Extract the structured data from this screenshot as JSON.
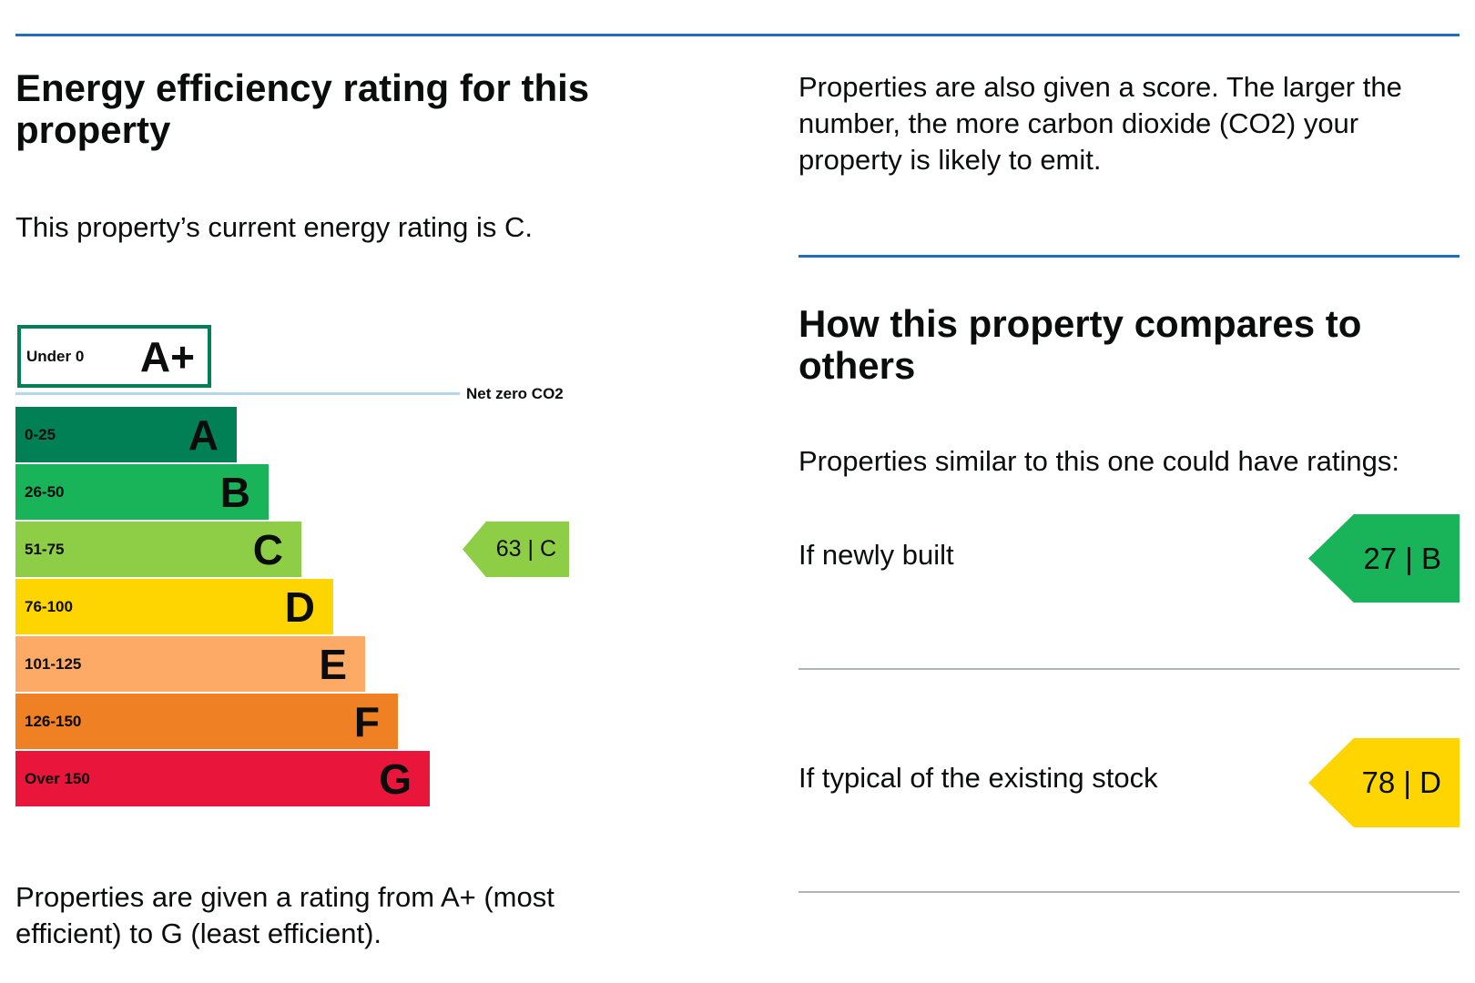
{
  "left": {
    "title": "Energy efficiency rating for this property",
    "current_rating_text": "This property’s current energy rating is C.",
    "scale": {
      "top_band": {
        "range": "Under 0",
        "rating": "A+"
      },
      "net_zero_label": "Net zero CO2",
      "bands": [
        {
          "range": "0-25",
          "rating": "A",
          "color": "#008054"
        },
        {
          "range": "26-50",
          "rating": "B",
          "color": "#19b459"
        },
        {
          "range": "51-75",
          "rating": "C",
          "color": "#8dce46"
        },
        {
          "range": "76-100",
          "rating": "D",
          "color": "#ffd500"
        },
        {
          "range": "101-125",
          "rating": "E",
          "color": "#fcaa65"
        },
        {
          "range": "126-150",
          "rating": "F",
          "color": "#ef8023"
        },
        {
          "range": "Over 150",
          "rating": "G",
          "color": "#e9153b"
        }
      ]
    },
    "current": {
      "label": "63 |  C",
      "color": "#8dce46"
    },
    "footer_text": "Properties are given a rating from A+ (most efficient) to G (least efficient)."
  },
  "right": {
    "score_text": "Properties are also given a score. The larger the number, the more carbon dioxide (CO2) your property is likely to emit.",
    "compare_title": "How this property compares to others",
    "similar_text": "Properties similar to this one could have ratings:",
    "comparisons": [
      {
        "label": "If newly built",
        "badge": "27 | B",
        "color": "#19b459"
      },
      {
        "label": "If typical of the existing stock",
        "badge": "78 | D",
        "color": "#ffd500"
      }
    ]
  }
}
